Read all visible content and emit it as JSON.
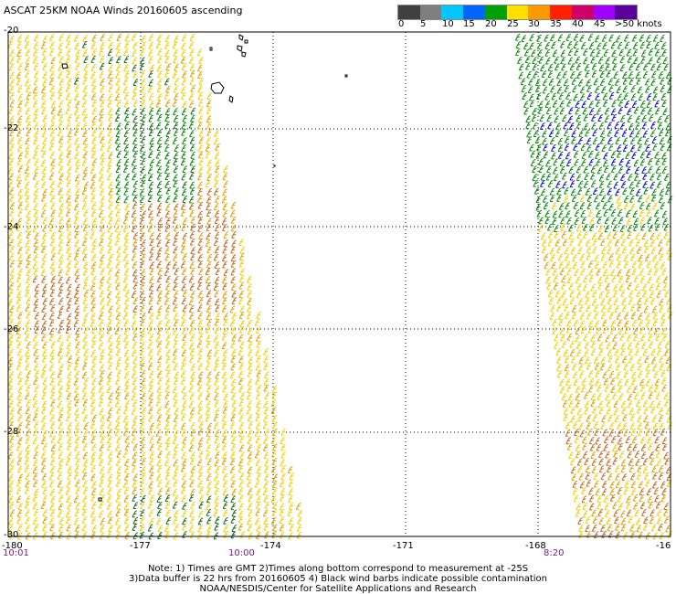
{
  "title": "ASCAT 25KM NOAA Winds 20160605 ascending",
  "colorbar": {
    "ticks": [
      "0",
      "5",
      "10",
      "15",
      "20",
      "25",
      "30",
      "35",
      "40",
      "45",
      ">50 knots"
    ],
    "colors": [
      "#404040",
      "#7f7f7f",
      "#00c8ff",
      "#0064ff",
      "#00a000",
      "#ffe000",
      "#ff9900",
      "#ff2000",
      "#d0006a",
      "#a000ff",
      "#5a009a"
    ]
  },
  "lat_labels": [
    "-20",
    "-22",
    "-24",
    "-26",
    "-28",
    "-30"
  ],
  "lon_labels": [
    "-180",
    "-177",
    "-174",
    "-171",
    "-168",
    "-16"
  ],
  "time_labels": [
    "10:01",
    "10:00",
    "8:20"
  ],
  "notes": [
    "Note: 1) Times are GMT 2)Times along bottom correspond to measurement at -25S",
    "3)Data buffer is 22 hrs from 20160605 4) Black wind barbs indicate possible contamination",
    "NOAA/NESDIS/Center for Satellite Applications and Research"
  ],
  "legend_colors": {
    "yellow": "#f0d000",
    "orange": "#e0a000",
    "darkorange": "#c46a20",
    "green": "#0a8a0a",
    "darkgreen": "#1a6a1a",
    "blue": "#1010c0"
  }
}
